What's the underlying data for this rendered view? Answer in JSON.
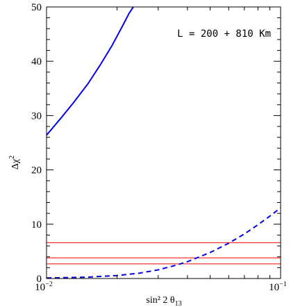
{
  "chart_data": {
    "type": "line",
    "title": "",
    "annotation": "L = 200 + 810 Km",
    "xlabel": {
      "main": "sin² 2 θ",
      "sub": "13"
    },
    "ylabel": {
      "main": "Δχ",
      "sup": "2"
    },
    "xscale": "log",
    "xlim": [
      0.01,
      0.1
    ],
    "ylim": [
      0,
      50
    ],
    "grid": false,
    "x_tick_labels": [
      {
        "value": 0.01,
        "base": "10",
        "exp": "−2"
      },
      {
        "value": 0.1,
        "base": "10",
        "exp": "−1"
      }
    ],
    "y_tick_labels": [
      "0",
      "10",
      "20",
      "30",
      "40",
      "50"
    ],
    "y_ticks": [
      0,
      10,
      20,
      30,
      40,
      50
    ],
    "series": [
      {
        "style": "solid",
        "color": "#0000ee",
        "x": [
          0.01,
          0.0115,
          0.013,
          0.015,
          0.017,
          0.019,
          0.021,
          0.0225,
          0.0235
        ],
        "y": [
          26.4,
          29.5,
          32.3,
          35.8,
          39.4,
          42.8,
          46.3,
          48.8,
          50.0
        ]
      },
      {
        "style": "dashed",
        "color": "#0000ee",
        "x": [
          0.01,
          0.015,
          0.02,
          0.025,
          0.03,
          0.035,
          0.04,
          0.05,
          0.06,
          0.07,
          0.08,
          0.09,
          0.1
        ],
        "y": [
          0.1,
          0.25,
          0.55,
          1.0,
          1.6,
          2.35,
          3.1,
          4.8,
          6.5,
          8.2,
          9.9,
          11.5,
          13.0
        ]
      }
    ],
    "hlines": [
      {
        "y": 6.6,
        "color": "#ff0000"
      },
      {
        "y": 3.8,
        "color": "#ff0000"
      },
      {
        "y": 2.7,
        "color": "#ff0000"
      }
    ]
  }
}
